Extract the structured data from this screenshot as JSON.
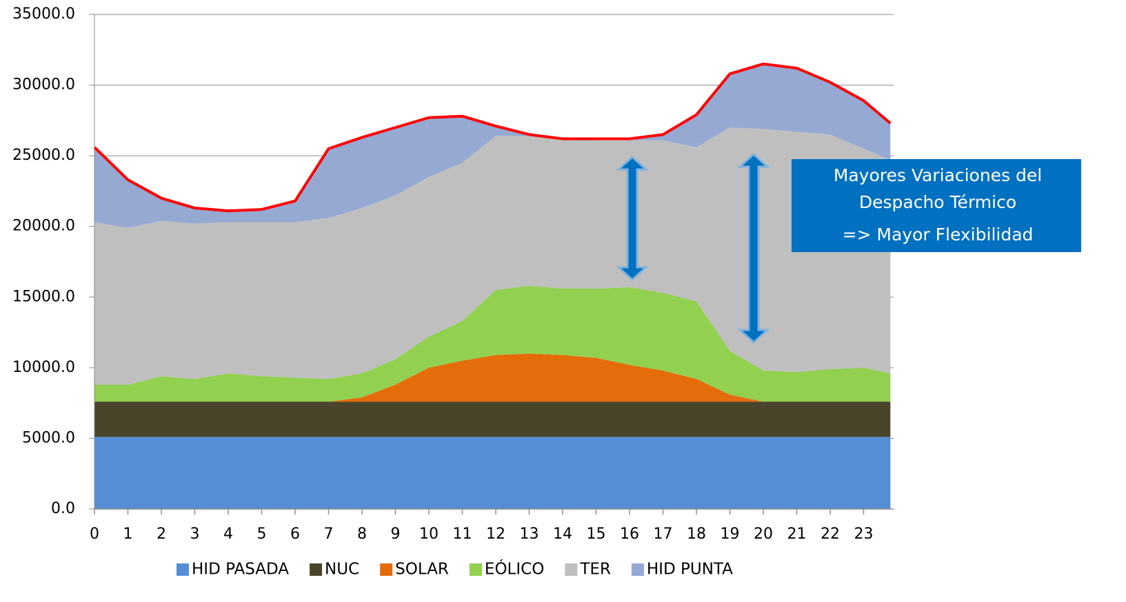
{
  "chart_data": {
    "type": "stacked_area",
    "x": [
      0,
      1,
      2,
      3,
      4,
      5,
      6,
      7,
      8,
      9,
      10,
      11,
      12,
      13,
      14,
      15,
      16,
      17,
      18,
      19,
      20,
      21,
      22,
      23,
      23.8
    ],
    "series": [
      {
        "name": "HID PASADA",
        "color": "#558ed5",
        "values": [
          5100,
          5100,
          5100,
          5100,
          5100,
          5100,
          5100,
          5100,
          5100,
          5100,
          5100,
          5100,
          5100,
          5100,
          5100,
          5100,
          5100,
          5100,
          5100,
          5100,
          5100,
          5100,
          5100,
          5100,
          5100
        ]
      },
      {
        "name": "NUC",
        "color": "#4a452a",
        "values": [
          2500,
          2500,
          2500,
          2500,
          2500,
          2500,
          2500,
          2500,
          2500,
          2500,
          2500,
          2500,
          2500,
          2500,
          2500,
          2500,
          2500,
          2500,
          2500,
          2500,
          2500,
          2500,
          2500,
          2500,
          2500
        ]
      },
      {
        "name": "SOLAR",
        "color": "#e46c0a",
        "values": [
          0,
          0,
          0,
          0,
          0,
          0,
          0,
          0,
          300,
          1200,
          2400,
          2900,
          3300,
          3400,
          3300,
          3100,
          2600,
          2200,
          1600,
          500,
          0,
          0,
          0,
          0,
          0
        ]
      },
      {
        "name": "EÓLICO",
        "color": "#92d050",
        "values": [
          1200,
          1200,
          1800,
          1600,
          2000,
          1800,
          1700,
          1600,
          1700,
          1800,
          2200,
          2800,
          4600,
          4800,
          4700,
          4900,
          5500,
          5500,
          5500,
          3100,
          2200,
          2100,
          2300,
          2400,
          2000
        ]
      },
      {
        "name": "TER",
        "color": "#bfbfbf",
        "values": [
          11500,
          11100,
          11000,
          11000,
          10700,
          10900,
          11000,
          11400,
          11700,
          11600,
          11300,
          11200,
          10900,
          10600,
          10600,
          10500,
          10400,
          10800,
          10900,
          15800,
          17100,
          17000,
          16600,
          15500,
          15100
        ]
      },
      {
        "name": "HID PUNTA",
        "color": "#95a9d3",
        "values": [
          5300,
          3400,
          1600,
          1100,
          800,
          900,
          1500,
          4900,
          5000,
          4800,
          4200,
          3300,
          700,
          100,
          0,
          100,
          100,
          400,
          2300,
          3800,
          4600,
          4500,
          3700,
          3400,
          2600
        ]
      }
    ],
    "total_line_color": "#ff0000",
    "xlim": [
      0,
      23.9
    ],
    "xticks": [
      0,
      1,
      2,
      3,
      4,
      5,
      6,
      7,
      8,
      9,
      10,
      11,
      12,
      13,
      14,
      15,
      16,
      17,
      18,
      19,
      20,
      21,
      22,
      23
    ],
    "ylim": [
      0,
      35000
    ],
    "yticks": [
      {
        "value": 0,
        "label": "0.0"
      },
      {
        "value": 5000,
        "label": "5000.0"
      },
      {
        "value": 10000,
        "label": "10000.0"
      },
      {
        "value": 15000,
        "label": "15000.0"
      },
      {
        "value": 20000,
        "label": "20000.0"
      },
      {
        "value": 25000,
        "label": "25000.0"
      },
      {
        "value": 30000,
        "label": "30000.0"
      },
      {
        "value": 35000,
        "label": "35000.0"
      }
    ],
    "grid": true,
    "legend": "bottom",
    "annotation": [
      "Mayores Variaciones del",
      "Despacho Térmico",
      "=> Mayor Flexibilidad"
    ]
  }
}
